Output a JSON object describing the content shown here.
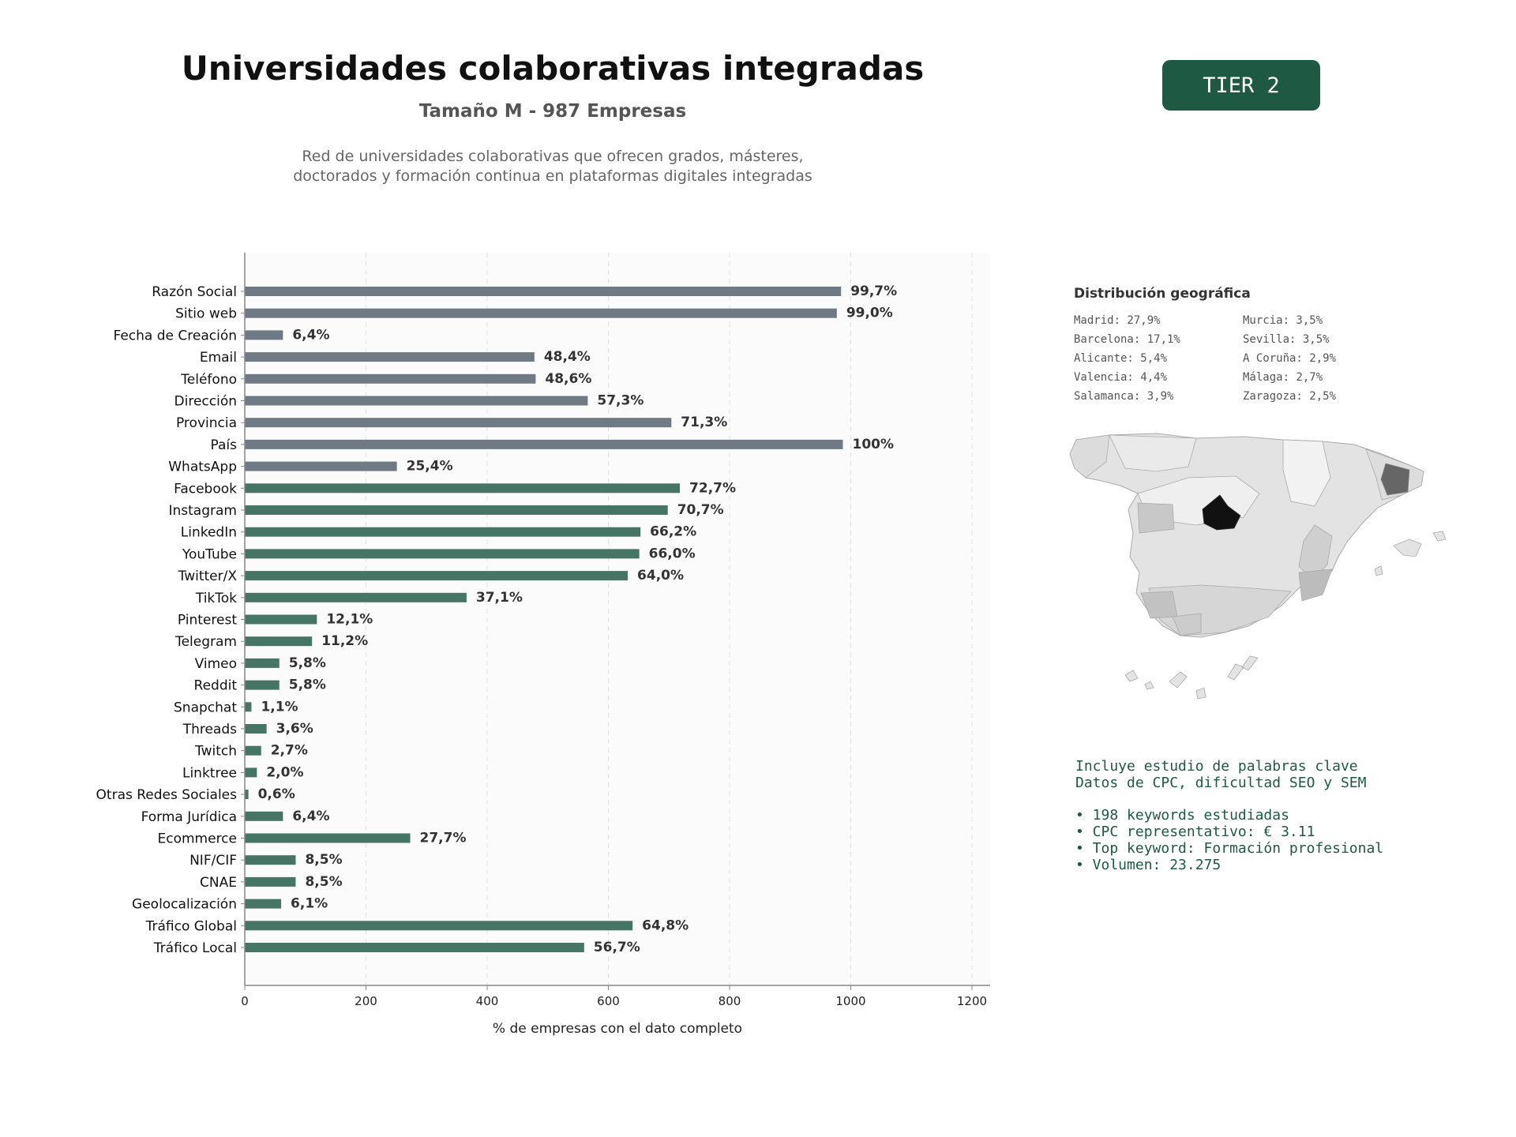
{
  "header": {
    "title": "Universidades colaborativas integradas",
    "subtitle": "Tamaño M - 987 Empresas",
    "description_lines": [
      "Red de universidades colaborativas que ofrecen grados, másteres,",
      "doctorados y formación continua en plataformas digitales integradas"
    ],
    "tier_label": "TIER 2"
  },
  "chart_data": {
    "type": "bar",
    "orientation": "horizontal",
    "xlabel": "% de empresas con el dato completo",
    "ylabel": "",
    "xlim": [
      0,
      1230
    ],
    "xticks": [
      0,
      200,
      400,
      600,
      800,
      1000,
      1200
    ],
    "grid": "vertical dashed",
    "categories": [
      "Razón Social",
      "Sitio web",
      "Fecha de Creación",
      "Email",
      "Teléfono",
      "Dirección",
      "Provincia",
      "País",
      "WhatsApp",
      "Facebook",
      "Instagram",
      "LinkedIn",
      "YouTube",
      "Twitter/X",
      "TikTok",
      "Pinterest",
      "Telegram",
      "Vimeo",
      "Reddit",
      "Snapchat",
      "Threads",
      "Twitch",
      "Linktree",
      "Otras Redes Sociales",
      "Forma Jurídica",
      "Ecommerce",
      "NIF/CIF",
      "CNAE",
      "Geolocalización",
      "Tráfico Global",
      "Tráfico Local"
    ],
    "values": [
      984,
      977,
      63,
      478,
      480,
      566,
      704,
      987,
      251,
      718,
      698,
      653,
      651,
      632,
      366,
      119,
      111,
      57,
      57,
      11,
      36,
      27,
      20,
      6,
      63,
      273,
      84,
      84,
      60,
      640,
      560
    ],
    "labels": [
      "99,7%",
      "99,0%",
      "6,4%",
      "48,4%",
      "48,6%",
      "57,3%",
      "71,3%",
      "100%",
      "25,4%",
      "72,7%",
      "70,7%",
      "66,2%",
      "66,0%",
      "64,0%",
      "37,1%",
      "12,1%",
      "11,2%",
      "5,8%",
      "5,8%",
      "1,1%",
      "3,6%",
      "2,7%",
      "2,0%",
      "0,6%",
      "6,4%",
      "27,7%",
      "8,5%",
      "8,5%",
      "6,1%",
      "64,8%",
      "56,7%"
    ],
    "colors": {
      "basic": "#6f7a84",
      "digital": "#477565",
      "basic_count": 9
    }
  },
  "geo": {
    "title": "Distribución geográfica",
    "left_column": [
      "Madrid: 27,9%",
      "Barcelona: 17,1%",
      "Alicante: 5,4%",
      "Valencia: 4,4%",
      "Salamanca: 3,9%"
    ],
    "right_column": [
      "Murcia: 3,5%",
      "Sevilla: 3,5%",
      "A Coruña: 2,9%",
      "Málaga: 2,7%",
      "Zaragoza: 2,5%"
    ]
  },
  "keywords": {
    "intro_lines": [
      "Incluye estudio de palabras clave",
      "Datos de CPC, dificultad SEO y SEM"
    ],
    "bullets": [
      "• 198 keywords estudiadas",
      "• CPC representativo: € 3.11",
      "• Top keyword: Formación profesional",
      "• Volumen: 23.275"
    ]
  }
}
